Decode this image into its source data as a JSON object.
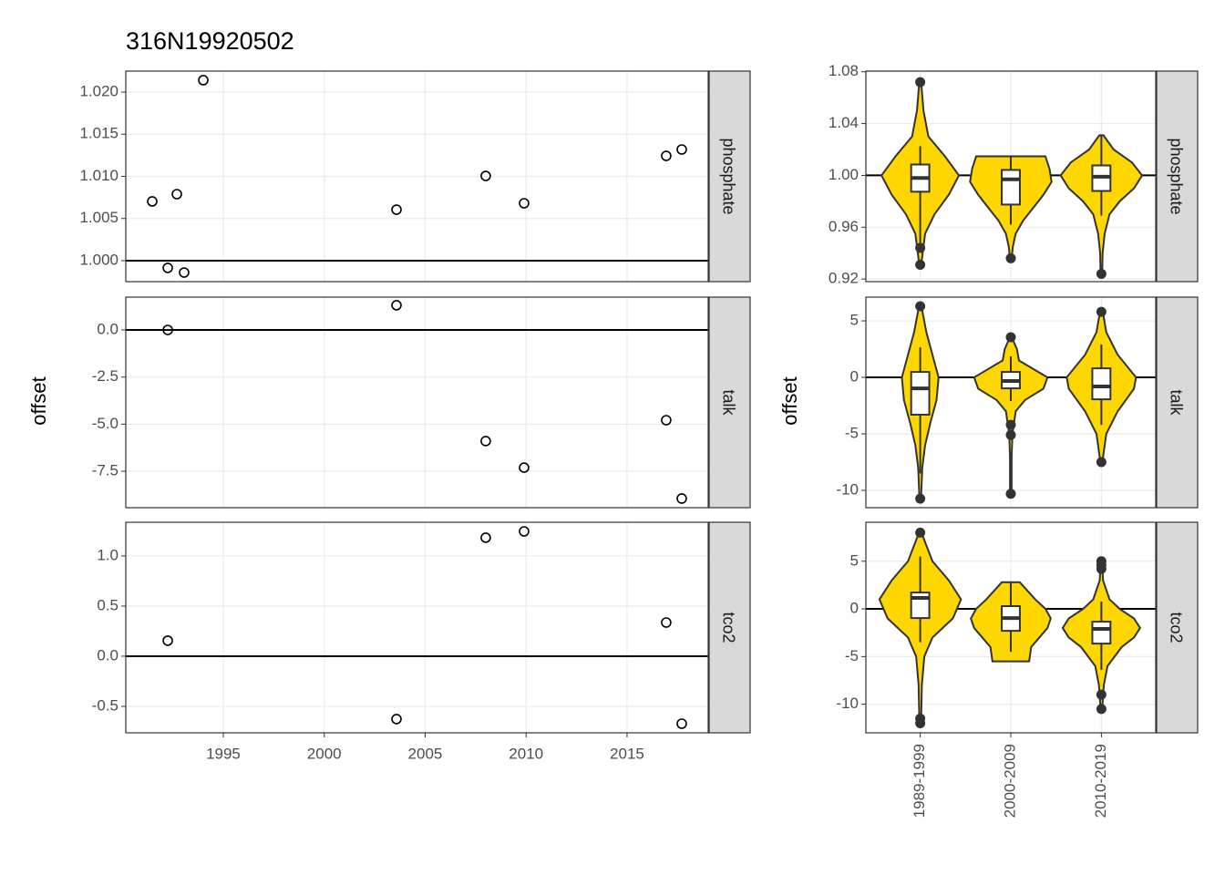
{
  "title": "316N19920502",
  "chart_data": [
    {
      "type": "scatter",
      "ylabel": "offset",
      "xlim": [
        1990.17,
        2019.02
      ],
      "xticks": [
        1995,
        2000,
        2005,
        2010,
        2015
      ],
      "panels": [
        {
          "label": "phosphate",
          "ylim": [
            0.99751,
            1.02249
          ],
          "hline": 1,
          "yticks": [
            {
              "value": 1.0,
              "label": "1.000"
            },
            {
              "value": 1.005,
              "label": "1.005"
            },
            {
              "value": 1.01,
              "label": "1.010"
            },
            {
              "value": 1.015,
              "label": "1.015"
            },
            {
              "value": 1.02,
              "label": "1.020"
            }
          ],
          "x": [
            1991.48,
            1992.25,
            1992.7,
            1993.06,
            1994.01,
            2003.58,
            2008.0,
            2009.9,
            2016.94,
            2017.71
          ],
          "y": [
            1.00703,
            0.99914,
            1.00789,
            0.99859,
            1.02141,
            1.00605,
            1.01005,
            1.00681,
            1.01243,
            1.01319
          ]
        },
        {
          "label": "talk",
          "ylim": [
            -9.435,
            1.742
          ],
          "hline": 0,
          "yticks": [
            {
              "value": 0,
              "label": "0.0"
            },
            -2.5,
            {
              "value": -5,
              "label": "-5.0"
            },
            -7.5
          ],
          "x": [
            1992.25,
            2003.58,
            2008.0,
            2009.9,
            2016.94,
            2017.71
          ],
          "y": [
            0.0,
            1.31,
            -5.9,
            -7.31,
            -4.79,
            -8.95
          ]
        },
        {
          "label": "tco2",
          "ylim": [
            -0.764,
            1.336
          ],
          "hline": 0,
          "yticks": [
            -0.5,
            {
              "value": 0,
              "label": "0.0"
            },
            0.5,
            {
              "value": 1,
              "label": "1.0"
            }
          ],
          "x": [
            1992.25,
            2003.58,
            2008.0,
            2009.9,
            2016.94,
            2017.71
          ],
          "y": [
            0.155,
            -0.627,
            1.182,
            1.245,
            0.336,
            -0.673
          ]
        }
      ]
    },
    {
      "type": "violin",
      "ylabel": "offset",
      "color": "#FFD700",
      "categories": [
        "1989-1999",
        "2000-2009",
        "2010-2019"
      ],
      "panels": [
        {
          "label": "phosphate",
          "ylim": [
            0.918,
            1.0805
          ],
          "hline": 1,
          "yticks": [
            0.92,
            0.96,
            {
              "value": 1.0,
              "label": "1.00"
            },
            1.04,
            1.08
          ],
          "boxes": [
            {
              "lower": 0.9467,
              "q1": 0.9874,
              "median": 0.998,
              "q3": 1.0084,
              "upper": 1.0225,
              "outliers": [
                1.072,
                0.944,
                0.931
              ],
              "violin": {
                "y": [
                  1.073,
                  1.05,
                  1.03,
                  1.015,
                  1.0,
                  0.985,
                  0.97,
                  0.955,
                  0.94,
                  0.9305
                ],
                "w": [
                  0.02,
                  0.08,
                  0.2,
                  0.6,
                  0.95,
                  0.7,
                  0.35,
                  0.12,
                  0.06,
                  0.02
                ]
              }
            },
            {
              "lower": 0.962,
              "q1": 0.9775,
              "median": 0.997,
              "q3": 1.0042,
              "upper": 1.0147,
              "outliers": [
                0.936
              ],
              "violin": {
                "y": [
                  1.0147,
                  1.005,
                  0.995,
                  0.985,
                  0.975,
                  0.965,
                  0.955,
                  0.945,
                  0.936
                ],
                "w": [
                  0.85,
                  0.95,
                  1.0,
                  0.8,
                  0.55,
                  0.3,
                  0.12,
                  0.05,
                  0.02
                ]
              }
            },
            {
              "lower": 0.969,
              "q1": 0.988,
              "median": 0.999,
              "q3": 1.0077,
              "upper": 1.031,
              "outliers": [
                0.924
              ],
              "violin": {
                "y": [
                  1.031,
                  1.02,
                  1.01,
                  1.0,
                  0.99,
                  0.98,
                  0.97,
                  0.955,
                  0.94,
                  0.924
                ],
                "w": [
                  0.05,
                  0.3,
                  0.75,
                  1.0,
                  0.8,
                  0.45,
                  0.2,
                  0.08,
                  0.03,
                  0.02
                ]
              }
            }
          ]
        },
        {
          "label": "talk",
          "ylim": [
            -11.53,
            7.1
          ],
          "hline": 0,
          "yticks": [
            -10,
            -5,
            0,
            5
          ],
          "boxes": [
            {
              "lower": -8.5,
              "q1": -3.3,
              "median": -0.97,
              "q3": 0.48,
              "upper": 2.66,
              "outliers": [
                6.29,
                -10.73
              ],
              "violin": {
                "y": [
                  6.3,
                  4,
                  2,
                  0,
                  -2,
                  -4,
                  -6,
                  -8,
                  -10.7
                ],
                "w": [
                  0.03,
                  0.15,
                  0.3,
                  0.45,
                  0.4,
                  0.25,
                  0.12,
                  0.05,
                  0.02
                ]
              }
            },
            {
              "lower": -2.1,
              "q1": -0.97,
              "median": -0.32,
              "q3": 0.48,
              "upper": 1.85,
              "outliers": [
                3.55,
                -4.2,
                -5.1,
                -10.3
              ],
              "violin": {
                "y": [
                  3.5,
                  2.5,
                  1.5,
                  0,
                  -1,
                  -2,
                  -3,
                  -5,
                  -7,
                  -10.3
                ],
                "w": [
                  0.03,
                  0.15,
                  0.2,
                  0.9,
                  0.8,
                  0.35,
                  0.12,
                  0.04,
                  0.02,
                  0.02
                ]
              }
            },
            {
              "lower": -4.2,
              "q1": -1.94,
              "median": -0.8,
              "q3": 0.8,
              "upper": 2.9,
              "outliers": [
                5.8,
                -7.5
              ],
              "violin": {
                "y": [
                  5.9,
                  4,
                  2,
                  0,
                  -1,
                  -3,
                  -5,
                  -7.6
                ],
                "w": [
                  0.03,
                  0.12,
                  0.4,
                  0.85,
                  0.8,
                  0.4,
                  0.12,
                  0.02
                ]
              }
            }
          ]
        },
        {
          "label": "tco2",
          "ylim": [
            -13.0,
            9.09
          ],
          "hline": 0,
          "yticks": [
            -10,
            -5,
            0,
            5
          ],
          "boxes": [
            {
              "lower": -3.5,
              "q1": -0.96,
              "median": 1.15,
              "q3": 1.72,
              "upper": 5.5,
              "outliers": [
                8.0,
                -11.5,
                -12.0
              ],
              "violin": {
                "y": [
                  8,
                  5,
                  3,
                  1,
                  -1,
                  -3,
                  -5,
                  -8,
                  -12
                ],
                "w": [
                  0.03,
                  0.3,
                  0.7,
                  1.0,
                  0.8,
                  0.3,
                  0.1,
                  0.04,
                  0.02
                ]
              }
            },
            {
              "lower": -4.5,
              "q1": -2.3,
              "median": -0.96,
              "q3": 0.29,
              "upper": 2.8,
              "outliers": [],
              "violin": {
                "y": [
                  2.8,
                  1,
                  0,
                  -1,
                  -2,
                  -3,
                  -4,
                  -5.5
                ],
                "w": [
                  0.22,
                  0.6,
                  0.85,
                  0.98,
                  0.9,
                  0.7,
                  0.5,
                  0.45
                ]
              }
            },
            {
              "lower": -6.4,
              "q1": -3.64,
              "median": -2.1,
              "q3": -1.34,
              "upper": 0.77,
              "outliers": [
                5.0,
                4.6,
                4.2,
                -9.0,
                -10.5
              ],
              "violin": {
                "y": [
                  5,
                  3,
                  1,
                  0,
                  -1,
                  -2,
                  -3,
                  -4,
                  -6,
                  -8,
                  -10.5
                ],
                "w": [
                  0.02,
                  0.04,
                  0.2,
                  0.45,
                  0.8,
                  0.95,
                  0.8,
                  0.5,
                  0.15,
                  0.06,
                  0.02
                ]
              }
            }
          ]
        }
      ]
    }
  ]
}
